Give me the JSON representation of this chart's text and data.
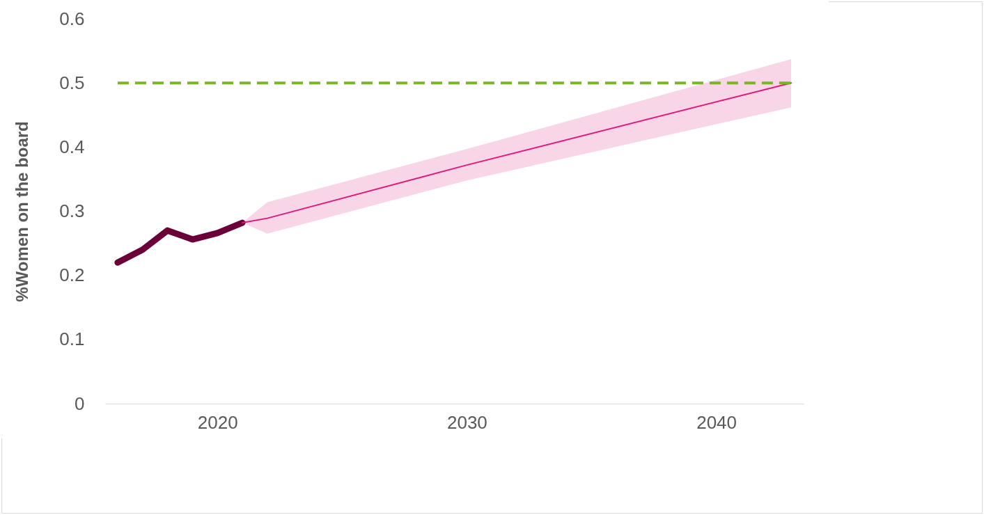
{
  "chart_data": {
    "type": "line",
    "ylabel": "%Women on the board",
    "xlim": [
      2015.5,
      2043.5
    ],
    "xticks": [
      2020,
      2030,
      2040
    ],
    "ylim": [
      0,
      0.6
    ],
    "yticks": [
      0,
      0.1,
      0.2,
      0.3,
      0.4,
      0.5,
      0.6
    ],
    "grid": false,
    "line_style": "solid",
    "series": [
      {
        "color": "#6b0039",
        "x": [
          2016,
          2017,
          2018,
          2019,
          2020,
          2021
        ],
        "values": [
          0.22,
          0.24,
          0.27,
          0.256,
          0.266,
          0.282
        ]
      },
      {
        "color": "#e0197a",
        "x": [
          2021,
          2022,
          2030,
          2043
        ],
        "values": [
          0.282,
          0.289,
          0.372,
          0.5
        ],
        "lower": [
          0.282,
          0.265,
          0.348,
          0.462
        ],
        "upper": [
          0.282,
          0.314,
          0.397,
          0.537
        ]
      }
    ],
    "ref_lines": [
      {
        "axis": "y",
        "value": 0.5,
        "label": null,
        "color": "#7ab527",
        "line_style": "dashed"
      }
    ]
  }
}
